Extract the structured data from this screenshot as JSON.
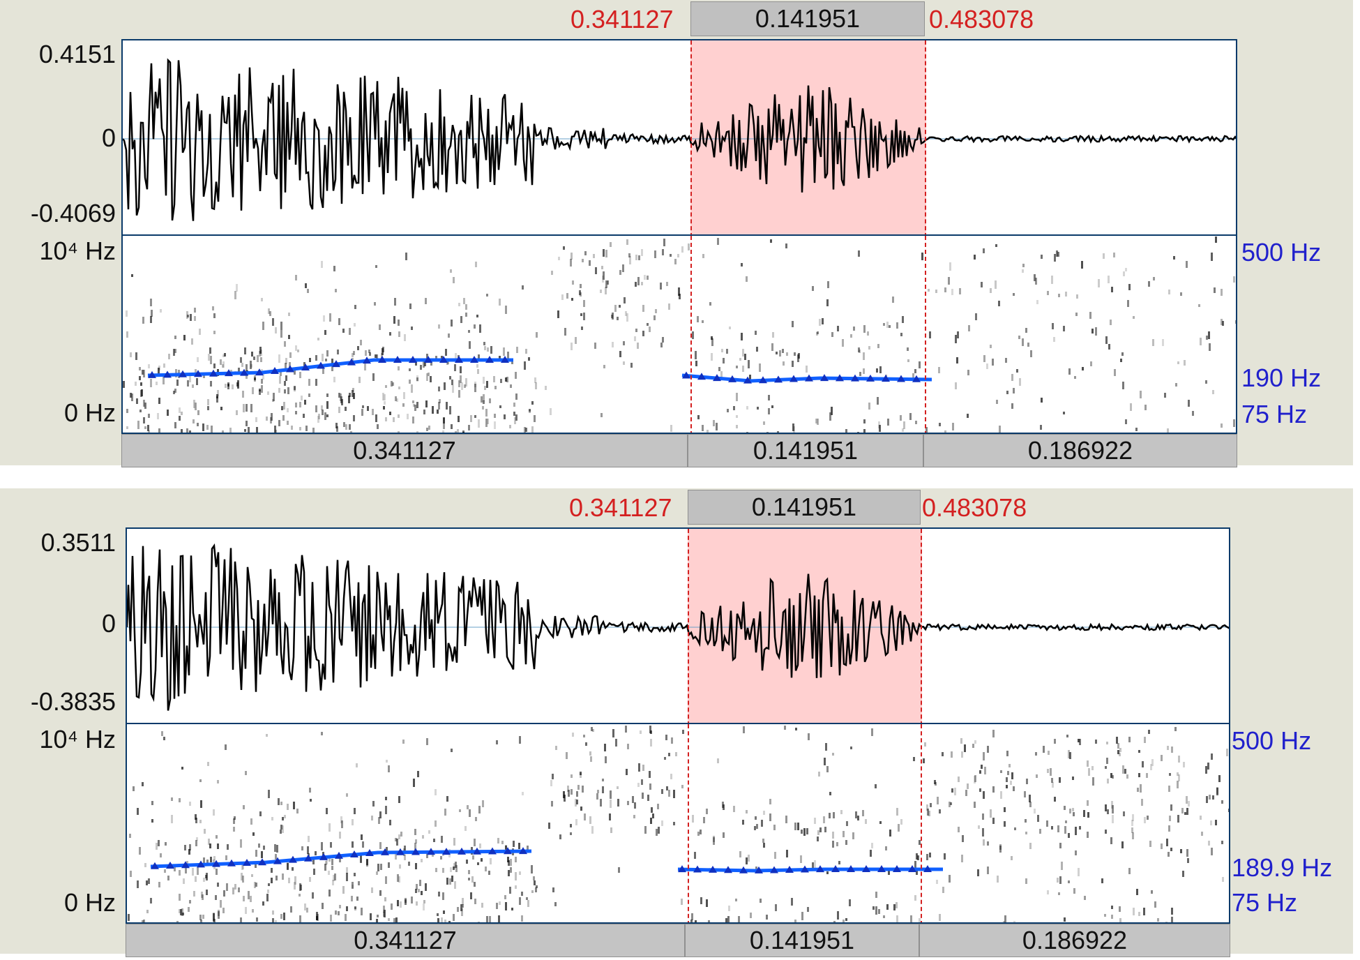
{
  "editors": [
    {
      "sel_start": "0.341127",
      "sel_end": "0.483078",
      "sel_duration": "0.141951",
      "wave_max": "0.4151",
      "wave_zero": "0",
      "wave_min": "-0.4069",
      "freq_top": "10⁴ Hz",
      "freq_bottom": "0 Hz",
      "pitch_top": "500 Hz",
      "pitch_value": "190 Hz",
      "pitch_bottom": "75 Hz",
      "intervals": [
        "0.341127",
        "0.141951",
        "0.186922"
      ]
    },
    {
      "sel_start": "0.341127",
      "sel_end": "0.483078",
      "sel_duration": "0.141951",
      "wave_max": "0.3511",
      "wave_zero": "0",
      "wave_min": "-0.3835",
      "freq_top": "10⁴ Hz",
      "freq_bottom": "0 Hz",
      "pitch_top": "500 Hz",
      "pitch_value": "189.9 Hz",
      "pitch_bottom": "75 Hz",
      "intervals": [
        "0.341127",
        "0.141951",
        "0.186922"
      ]
    }
  ],
  "colors": {
    "selection_fill": "#ffd0d0",
    "boundary": "#d42020",
    "pitch_line": "#1060ff",
    "pitch_labels": "#2020cc",
    "background": "#e4e4d8"
  }
}
